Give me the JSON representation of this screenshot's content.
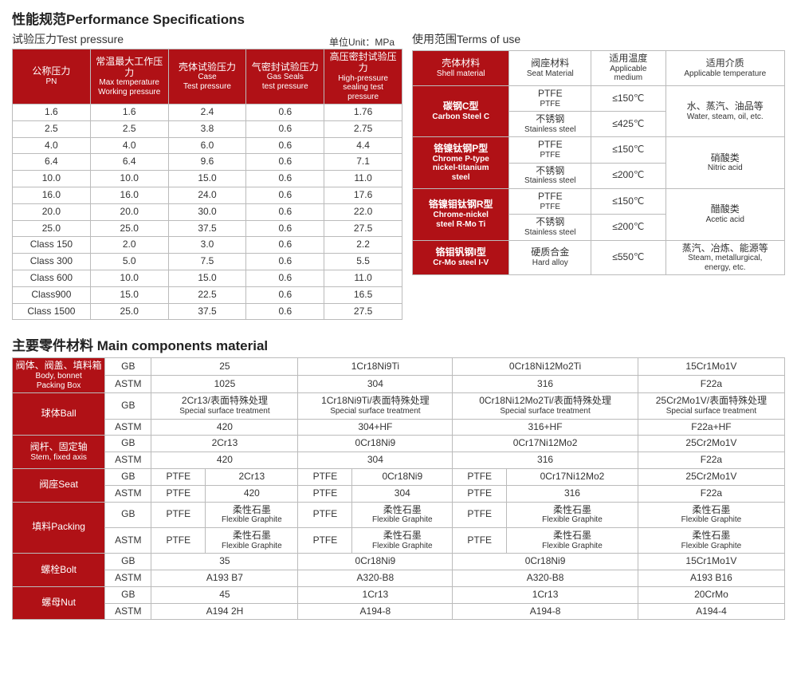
{
  "titles": {
    "perf": "性能规范Performance Specifications",
    "testPressure": "试验压力Test pressure",
    "unit": "单位Unit：MPa",
    "termsOfUse": "使用范围Terms of use",
    "mainComp": "主要零件材料 Main components material"
  },
  "t1": {
    "h1a": "公称压力",
    "h1b": "PN",
    "h2a": "常温最大工作压力",
    "h2b": "Max temperature",
    "h2c": "Working pressure",
    "h3a": "壳体试验压力",
    "h3b": "Case",
    "h3c": "Test pressure",
    "h4a": "气密封试验压力",
    "h4b": "Gas Seals",
    "h4c": "test pressure",
    "h5a": "高压密封试验压力",
    "h5b": "High-pressure",
    "h5c": "sealing test",
    "h5d": "pressure",
    "rows": [
      [
        "1.6",
        "1.6",
        "2.4",
        "0.6",
        "1.76"
      ],
      [
        "2.5",
        "2.5",
        "3.8",
        "0.6",
        "2.75"
      ],
      [
        "4.0",
        "4.0",
        "6.0",
        "0.6",
        "4.4"
      ],
      [
        "6.4",
        "6.4",
        "9.6",
        "0.6",
        "7.1"
      ],
      [
        "10.0",
        "10.0",
        "15.0",
        "0.6",
        "11.0"
      ],
      [
        "16.0",
        "16.0",
        "24.0",
        "0.6",
        "17.6"
      ],
      [
        "20.0",
        "20.0",
        "30.0",
        "0.6",
        "22.0"
      ],
      [
        "25.0",
        "25.0",
        "37.5",
        "0.6",
        "27.5"
      ],
      [
        "Class 150",
        "2.0",
        "3.0",
        "0.6",
        "2.2"
      ],
      [
        "Class 300",
        "5.0",
        "7.5",
        "0.6",
        "5.5"
      ],
      [
        "Class 600",
        "10.0",
        "15.0",
        "0.6",
        "11.0"
      ],
      [
        "Class900",
        "15.0",
        "22.5",
        "0.6",
        "16.5"
      ],
      [
        "Class 1500",
        "25.0",
        "37.5",
        "0.6",
        "27.5"
      ]
    ]
  },
  "t2": {
    "h1a": "壳体材料",
    "h1b": "Shell material",
    "h2a": "阀座材料",
    "h2b": "Seat Material",
    "h3a": "适用温度",
    "h3b": "Applicable",
    "h3c": "medium",
    "h4a": "适用介质",
    "h4b": "Applicable temperature",
    "g1a": "碳钢C型",
    "g1b": "Carbon Steel C",
    "g2a": "铬镍钛钢P型",
    "g2b": "Chrome P-type",
    "g2c": "nickel-titanium",
    "g2d": "steel",
    "g3a": "铬镍钼钛钢R型",
    "g3b": "Chrome-nickel",
    "g3c": "steel R-Mo Ti",
    "g4a": "铬钼钒钢I型",
    "g4b": "Cr-Mo steel I-V",
    "ptfe": "PTFE",
    "ptfe2": "PTFE",
    "ss_cn": "不锈钢",
    "ss_en": "Stainless steel",
    "ha_cn": "硬质合金",
    "ha_en": "Hard alloy",
    "t150": "≤150℃",
    "t425": "≤425℃",
    "t200": "≤200℃",
    "t550": "≤550℃",
    "m1a": "水、蒸汽、油品等",
    "m1b": "Water, steam, oil, etc.",
    "m2a": "硝酸类",
    "m2b": "Nitric acid",
    "m3a": "醋酸类",
    "m3b": "Acetic acid",
    "m4a": "蒸汽、冶炼、能源等",
    "m4b": "Steam, metallurgical,",
    "m4c": "energy, etc."
  },
  "t3": {
    "r1a": "阀体、阀盖、填料箱",
    "r1b": "Body, bonnet",
    "r1c": "Packing Box",
    "r2": "球体Ball",
    "r3a": "阀杆、固定轴",
    "r3b": "Stem, fixed axis",
    "r4": "阀座Seat",
    "r5": "填料Packing",
    "r6": "螺栓Bolt",
    "r7": "螺母Nut",
    "gb": "GB",
    "astm": "ASTM",
    "sst_cn": "2Cr13/表面特殊处理",
    "sst_cn2": "1Cr18Ni9Ti/表面特殊处理",
    "sst_cn3": "0Cr18Ni12Mo2Ti/表面特殊处理",
    "sst_cn4": "25Cr2Mo1V/表面特殊处理",
    "sst_en": "Special surface treatment",
    "fg_cn": "柔性石墨",
    "fg_en": "Flexible Graphite",
    "ptfe": "PTFE",
    "c": {
      "b1": [
        "25",
        "1Cr18Ni9Ti",
        "0Cr18Ni12Mo2Ti",
        "15Cr1Mo1V"
      ],
      "b2": [
        "1025",
        "304",
        "316",
        "F22a"
      ],
      "ball2": [
        "420",
        "304+HF",
        "316+HF",
        "F22a+HF"
      ],
      "stem1": [
        "2Cr13",
        "0Cr18Ni9",
        "0Cr17Ni12Mo2",
        "25Cr2Mo1V"
      ],
      "stem2": [
        "420",
        "304",
        "316",
        "F22a"
      ],
      "seat1": [
        "2Cr13",
        "0Cr18Ni9",
        "0Cr17Ni12Mo2",
        "25Cr2Mo1V"
      ],
      "seat2": [
        "420",
        "304",
        "316",
        "F22a"
      ],
      "bolt1": [
        "35",
        "0Cr18Ni9",
        "0Cr18Ni9",
        "15Cr1Mo1V"
      ],
      "bolt2": [
        "A193 B7",
        "A320-B8",
        "A320-B8",
        "A193 B16"
      ],
      "nut1": [
        "45",
        "1Cr13",
        "1Cr13",
        "20CrMo"
      ],
      "nut2": [
        "A194 2H",
        "A194-8",
        "A194-8",
        "A194-4"
      ]
    }
  }
}
